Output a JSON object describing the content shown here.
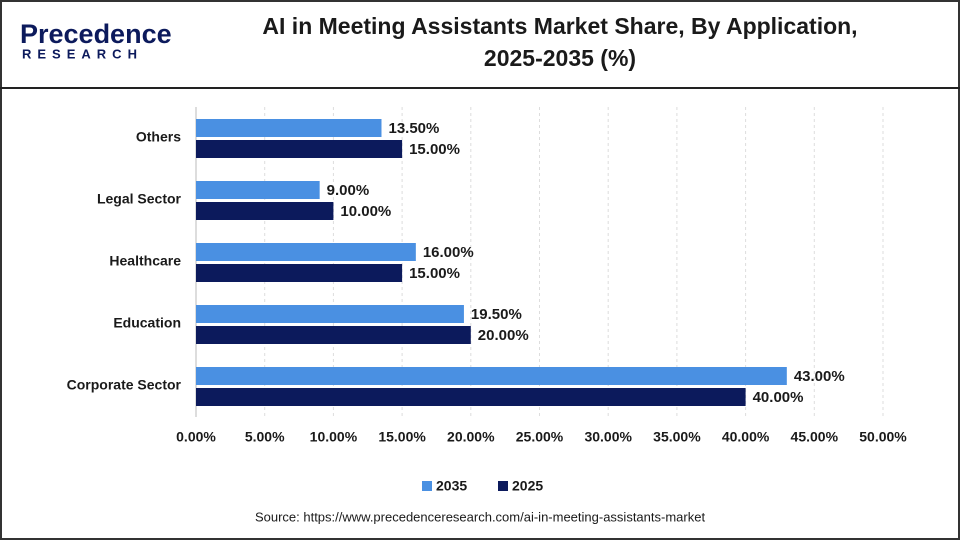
{
  "logo": {
    "name": "Precedence",
    "sub": "RESEARCH"
  },
  "source": "Source: https://www.precedenceresearch.com/ai-in-meeting-assistants-market",
  "chart_data": {
    "type": "hbar",
    "title": "AI in Meeting Assistants Market Share, By Application,",
    "subtitle": "2025-2035 (%)",
    "categories": [
      "Others",
      "Legal Sector",
      "Healthcare",
      "Education",
      "Corporate Sector"
    ],
    "series": [
      {
        "name": "2035",
        "color": "#4a90e2",
        "values": [
          13.5,
          9,
          16,
          19.5,
          43
        ],
        "value_labels": [
          "13.50%",
          "9.00%",
          "16.00%",
          "19.50%",
          "43.00%"
        ]
      },
      {
        "name": "2025",
        "color": "#0c1a5c",
        "values": [
          15,
          10,
          15,
          20,
          40
        ],
        "value_labels": [
          "15.00%",
          "10.00%",
          "15.00%",
          "20.00%",
          "40.00%"
        ]
      }
    ],
    "xlim": [
      0,
      50
    ],
    "xticks": [
      {
        "value": 0,
        "label": "0.00%"
      },
      {
        "value": 5,
        "label": "5.00%"
      },
      {
        "value": 10,
        "label": "10.00%"
      },
      {
        "value": 15,
        "label": "15.00%"
      },
      {
        "value": 20,
        "label": "20.00%"
      },
      {
        "value": 25,
        "label": "25.00%"
      },
      {
        "value": 30,
        "label": "30.00%"
      },
      {
        "value": 35,
        "label": "35.00%"
      },
      {
        "value": 40,
        "label": "40.00%"
      },
      {
        "value": 45,
        "label": "45.00%"
      },
      {
        "value": 50,
        "label": "50.00%"
      }
    ],
    "grid": true,
    "legend": "bottom"
  }
}
